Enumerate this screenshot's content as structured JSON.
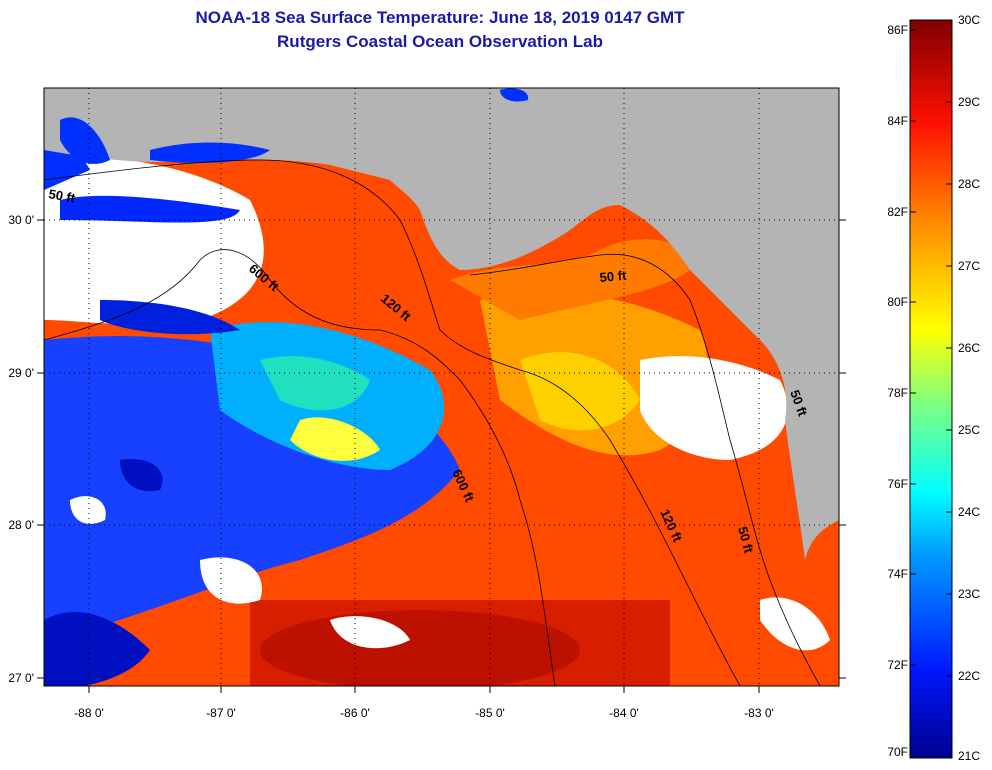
{
  "title": "NOAA-18 Sea Surface Temperature:  June 18, 2019 0147 GMT",
  "subtitle": "Rutgers Coastal Ocean Observation Lab",
  "x_ticks": [
    "-88 0'",
    "-87 0'",
    "-86 0'",
    "-85 0'",
    "-84 0'",
    "-83 0'"
  ],
  "y_ticks": [
    "30 0'",
    "29 0'",
    "28 0'",
    "27 0'"
  ],
  "contours": [
    "50 ft",
    "120 ft",
    "600 ft",
    "600 ft",
    "120 ft",
    "50 ft",
    "50 ft",
    "50 ft"
  ],
  "colorbar": {
    "fahrenheit": [
      "86F",
      "84F",
      "82F",
      "80F",
      "78F",
      "76F",
      "74F",
      "72F",
      "70F"
    ],
    "celsius": [
      "30C",
      "29C",
      "28C",
      "27C",
      "26C",
      "25C",
      "24C",
      "23C",
      "22C",
      "21C"
    ]
  },
  "colors": {
    "land": "#b4b4b4",
    "cloud": "#ffffff",
    "title": "#1a1aa6"
  }
}
